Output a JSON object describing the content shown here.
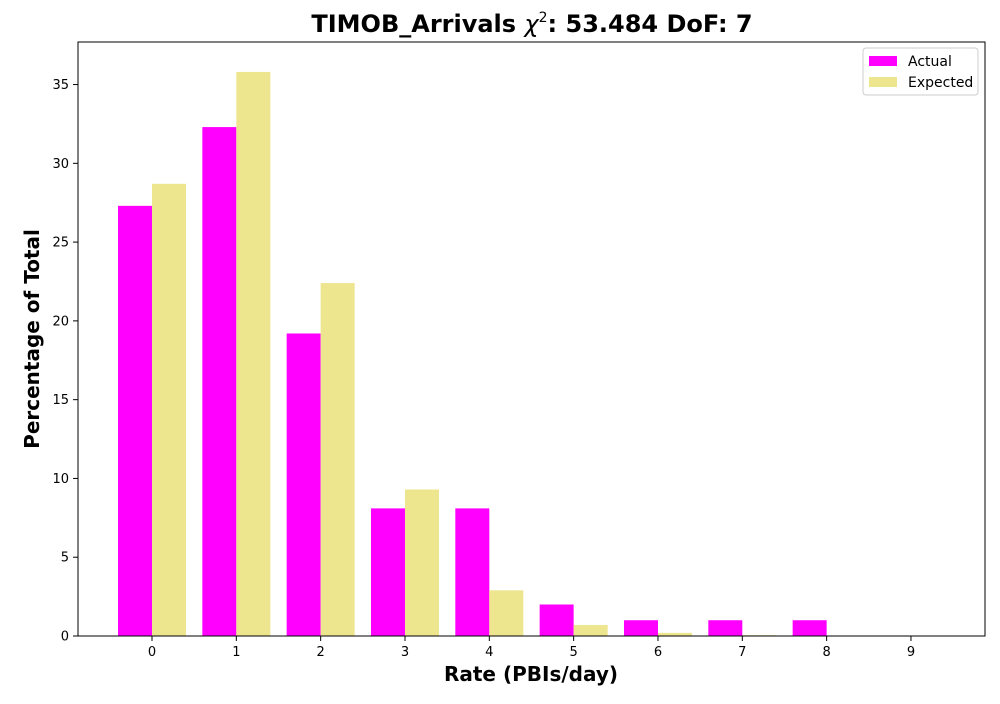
{
  "chart_data": {
    "type": "bar",
    "title_prefix": "TIMOB_Arrivals ",
    "title_chi": "χ",
    "title_sup": "2",
    "title_suffix": ": 53.484 DoF: 7",
    "xlabel": "Rate (PBIs/day)",
    "ylabel": "Percentage of Total",
    "categories": [
      "0",
      "1",
      "2",
      "3",
      "4",
      "5",
      "6",
      "7",
      "8",
      "9"
    ],
    "ylim": [
      0,
      37.7
    ],
    "yticks": [
      0,
      5,
      10,
      15,
      20,
      25,
      30,
      35
    ],
    "grid": false,
    "legend_position": "top-right",
    "series": [
      {
        "name": "Actual",
        "color": "#ff00ff",
        "values": [
          27.3,
          32.3,
          19.2,
          8.1,
          8.1,
          2.0,
          1.0,
          1.0,
          1.0,
          0
        ]
      },
      {
        "name": "Expected",
        "color": "#eee58f",
        "values": [
          28.7,
          35.8,
          22.4,
          9.3,
          2.9,
          0.7,
          0.2,
          0.05,
          0.01,
          0.0
        ]
      }
    ]
  }
}
